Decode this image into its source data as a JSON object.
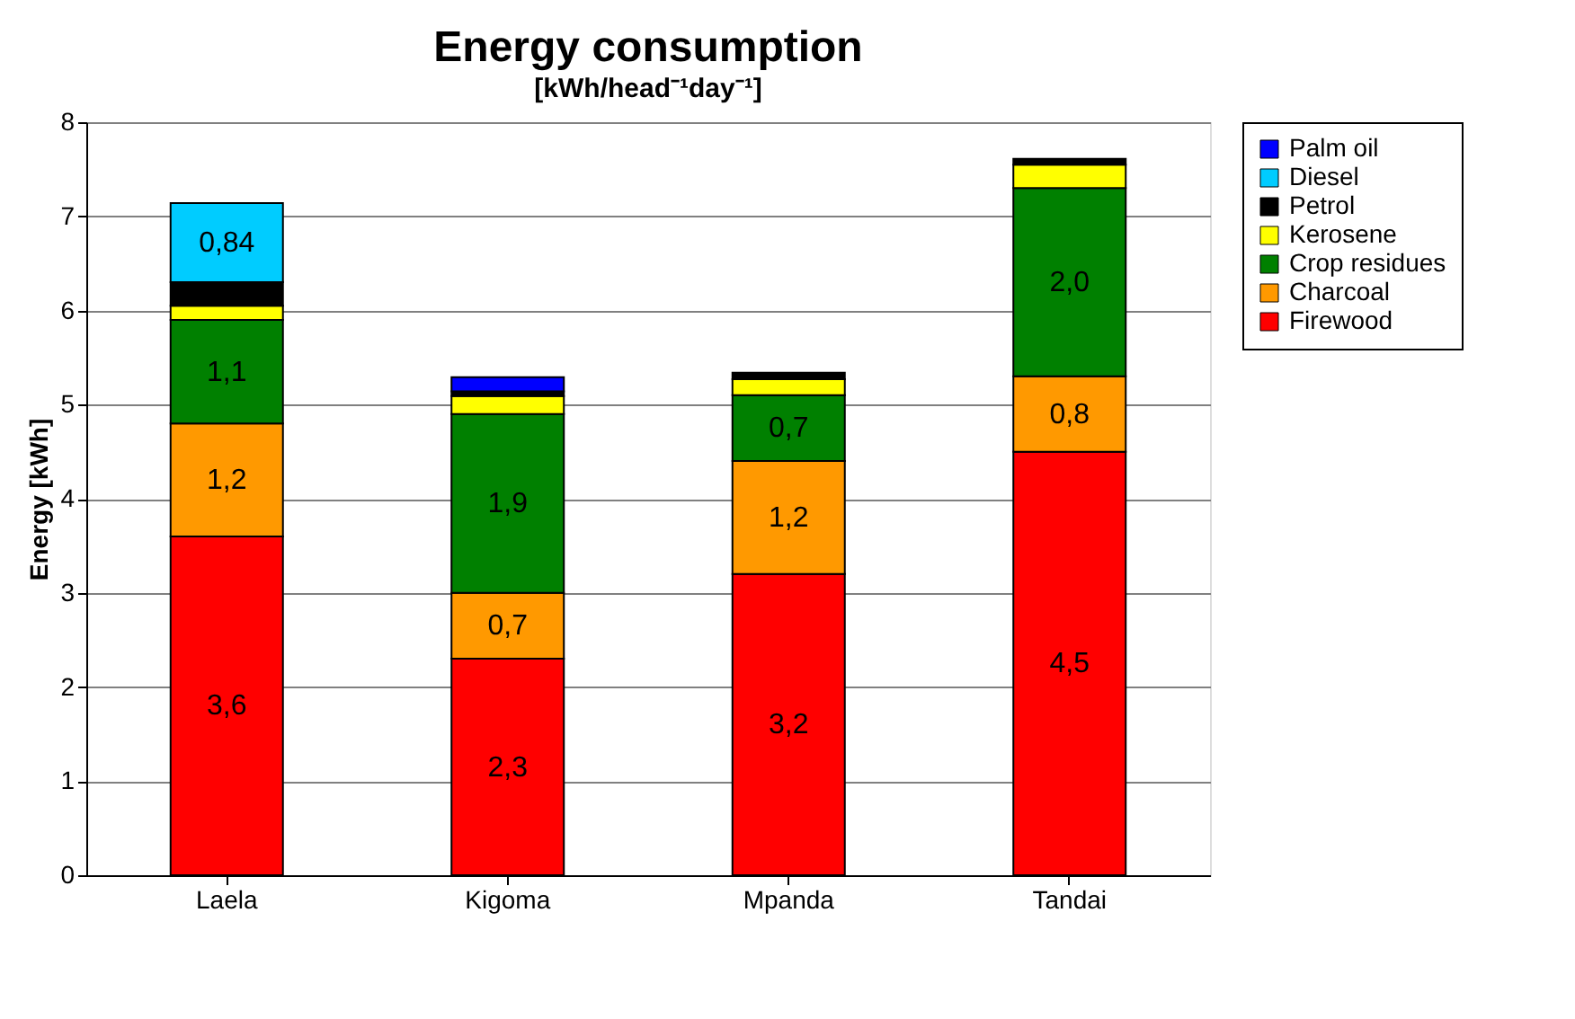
{
  "chart_data": {
    "type": "bar",
    "stacked": true,
    "title": "Energy consumption",
    "subtitle": "[kWh/head⁻¹day⁻¹]",
    "ylabel": "Energy [kWh]",
    "categories": [
      "Laela",
      "Kigoma",
      "Mpanda",
      "Tandai"
    ],
    "ylim": [
      0,
      8
    ],
    "yticks": [
      0,
      1,
      2,
      3,
      4,
      5,
      6,
      7,
      8
    ],
    "grid": "y",
    "legend": "right",
    "series": [
      {
        "name": "Firewood",
        "color": "#ff0000",
        "values": [
          3.6,
          2.3,
          3.2,
          4.5
        ],
        "value_labels": [
          "3,6",
          "2,3",
          "3,2",
          "4,5"
        ]
      },
      {
        "name": "Charcoal",
        "color": "#ff9900",
        "values": [
          1.2,
          0.7,
          1.2,
          0.8
        ],
        "value_labels": [
          "1,2",
          "0,7",
          "1,2",
          "0,8"
        ]
      },
      {
        "name": "Crop residues",
        "color": "#008000",
        "values": [
          1.1,
          1.9,
          0.7,
          2.0
        ],
        "value_labels": [
          "1,1",
          "1,9",
          "0,7",
          "2,0"
        ]
      },
      {
        "name": "Kerosene",
        "color": "#ffff00",
        "values": [
          0.15,
          0.19,
          0.17,
          0.25
        ]
      },
      {
        "name": "Petrol",
        "color": "#000000",
        "values": [
          0.25,
          0.05,
          0.07,
          0.06
        ]
      },
      {
        "name": "Diesel",
        "color": "#00ccff",
        "values": [
          0.84,
          null,
          null,
          null
        ],
        "value_labels": [
          "0,84",
          null,
          null,
          null
        ]
      },
      {
        "name": "Palm oil",
        "color": "#0000ff",
        "values": [
          null,
          0.15,
          null,
          null
        ]
      }
    ]
  }
}
